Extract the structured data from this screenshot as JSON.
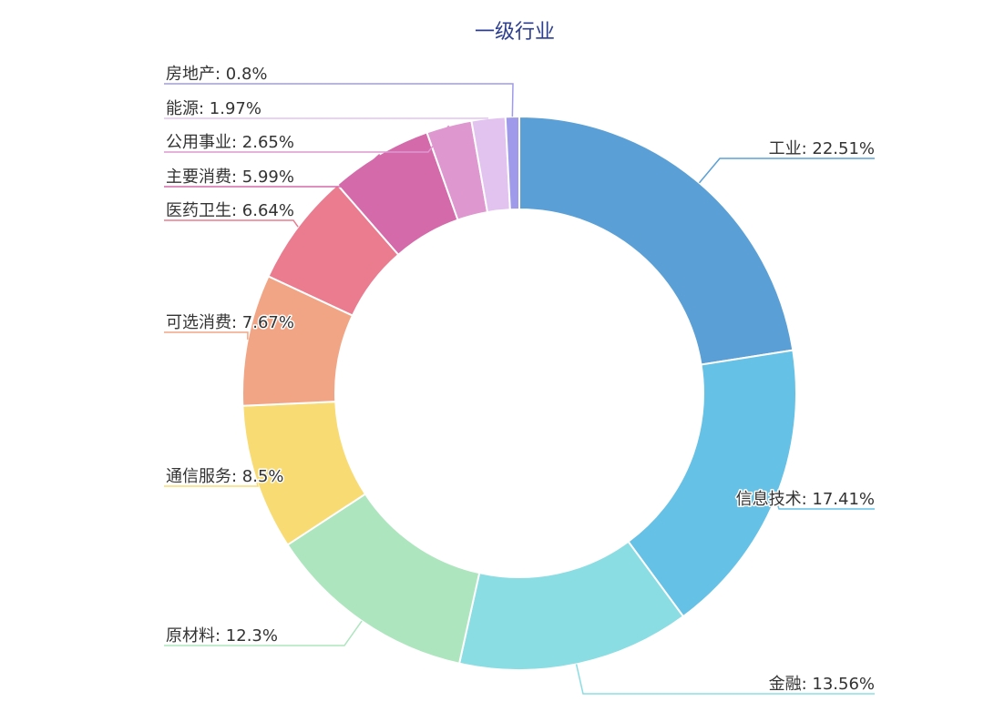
{
  "chart_data": {
    "type": "pie",
    "title": "一级行业",
    "donut": true,
    "legend": "none",
    "slices": [
      {
        "name": "工业",
        "value": 22.51,
        "label": "工业: 22.51%",
        "color": "#5aa0d6"
      },
      {
        "name": "信息技术",
        "value": 17.41,
        "label": "信息技术: 17.41%",
        "color": "#65c1e6"
      },
      {
        "name": "金融",
        "value": 13.56,
        "label": "金融: 13.56%",
        "color": "#8adde3"
      },
      {
        "name": "原材料",
        "value": 12.3,
        "label": "原材料: 12.3%",
        "color": "#ade5be"
      },
      {
        "name": "通信服务",
        "value": 8.5,
        "label": "通信服务: 8.5%",
        "color": "#f8db73"
      },
      {
        "name": "可选消费",
        "value": 7.67,
        "label": "可选消费: 7.67%",
        "color": "#f2a585"
      },
      {
        "name": "医药卫生",
        "value": 6.64,
        "label": "医药卫生: 6.64%",
        "color": "#eb7b8f"
      },
      {
        "name": "主要消费",
        "value": 5.99,
        "label": "主要消费: 5.99%",
        "color": "#d46aaa"
      },
      {
        "name": "公用事业",
        "value": 2.65,
        "label": "公用事业: 2.65%",
        "color": "#de97cf"
      },
      {
        "name": "能源",
        "value": 1.97,
        "label": "能源: 1.97%",
        "color": "#e2c3f0"
      },
      {
        "name": "房地产",
        "value": 0.8,
        "label": "房地产: 0.8%",
        "color": "#9f9aea"
      }
    ]
  }
}
